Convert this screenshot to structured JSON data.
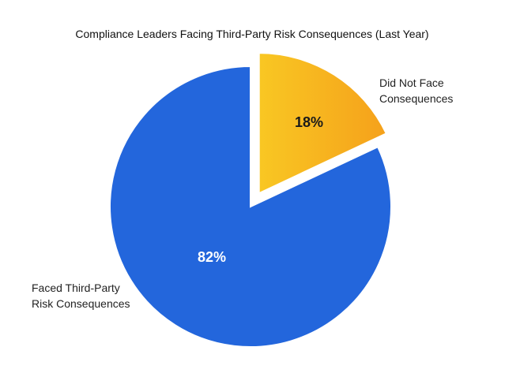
{
  "chart_data": {
    "type": "pie",
    "title": "Compliance Leaders Facing Third-Party Risk Consequences (Last Year)",
    "slices": [
      {
        "label_lines": [
          "Did Not Face",
          "Consequences"
        ],
        "value": 18,
        "value_label": "18%",
        "color": "#F9C723",
        "color_end": "#F5A11B",
        "label_color": "#1a1a1a",
        "exploded": true
      },
      {
        "label_lines": [
          "Faced Third-Party",
          "Risk Consequences"
        ],
        "value": 82,
        "value_label": "82%",
        "color": "#2366DC",
        "label_color": "#ffffff",
        "exploded": false
      }
    ],
    "start_angle": "12 o'clock",
    "direction": "clockwise",
    "legend": "none"
  }
}
